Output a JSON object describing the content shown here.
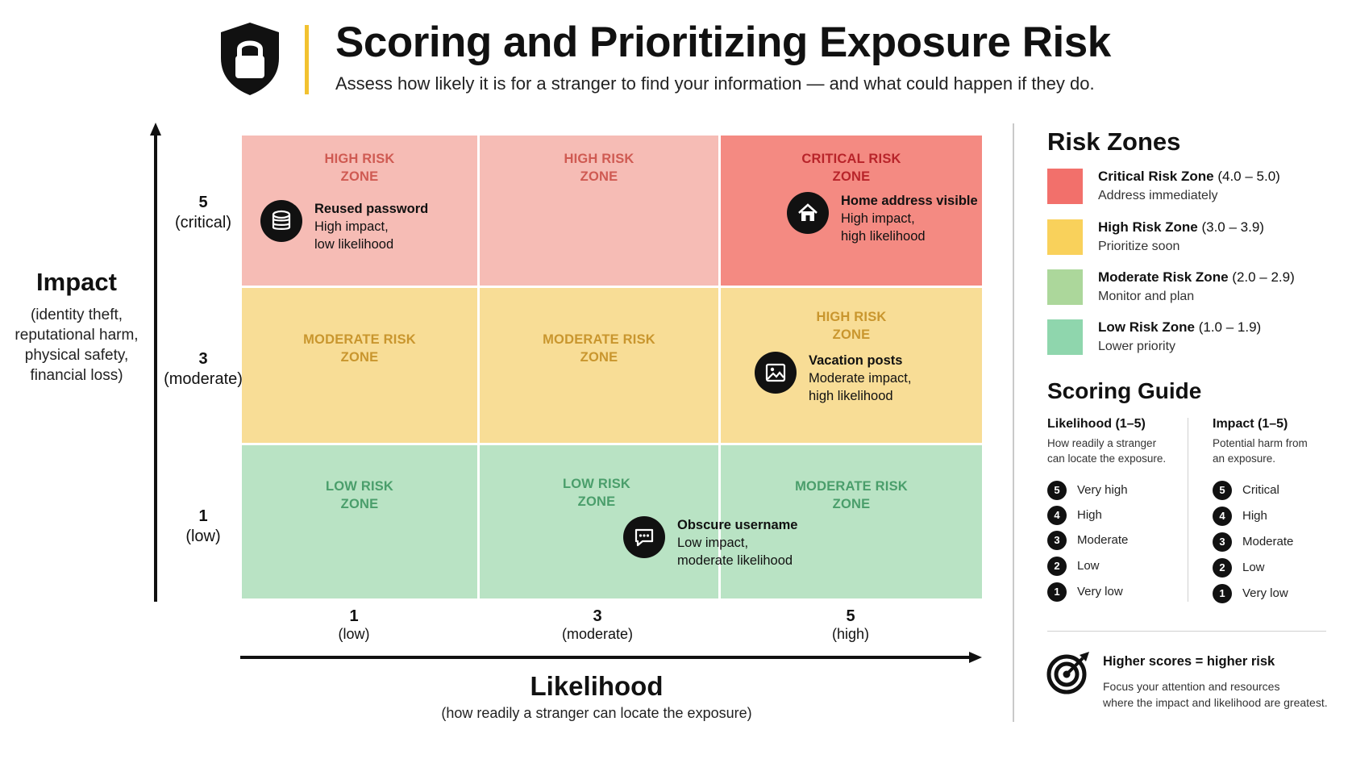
{
  "header": {
    "title": "Scoring and Prioritizing Exposure Risk",
    "subtitle": "Assess how likely it is for a stranger to find your information — and what could happen if they do.",
    "icon": "shield-lock-icon",
    "accent_color": "#f2c230"
  },
  "axes": {
    "y": {
      "title": "Impact",
      "subtitle": "(identity theft, reputational harm, physical safety, financial loss)",
      "ticks": [
        {
          "value": "5",
          "label": "(critical)"
        },
        {
          "value": "3",
          "label": "(moderate)"
        },
        {
          "value": "1",
          "label": "(low)"
        }
      ]
    },
    "x": {
      "title": "Likelihood",
      "subtitle": "(how readily a stranger can locate the exposure)",
      "ticks": [
        {
          "value": "1",
          "label": "(low)"
        },
        {
          "value": "3",
          "label": "(moderate)"
        },
        {
          "value": "5",
          "label": "(high)"
        }
      ]
    }
  },
  "grid": {
    "rows": [
      [
        {
          "zone": "high",
          "label_line1": "HIGH RISK",
          "label_line2": "ZONE"
        },
        {
          "zone": "high",
          "label_line1": "HIGH RISK",
          "label_line2": "ZONE"
        },
        {
          "zone": "critical",
          "label_line1": "CRITICAL RISK",
          "label_line2": "ZONE"
        }
      ],
      [
        {
          "zone": "moderate",
          "label_line1": "MODERATE RISK",
          "label_line2": "ZONE"
        },
        {
          "zone": "moderate",
          "label_line1": "MODERATE RISK",
          "label_line2": "ZONE"
        },
        {
          "zone": "high",
          "label_line1": "HIGH RISK",
          "label_line2": "ZONE"
        }
      ],
      [
        {
          "zone": "low",
          "label_line1": "LOW RISK",
          "label_line2": "ZONE"
        },
        {
          "zone": "low",
          "label_line1": "LOW RISK",
          "label_line2": "ZONE"
        },
        {
          "zone": "moderate",
          "label_line1": "MODERATE RISK",
          "label_line2": "ZONE"
        }
      ]
    ],
    "zone_colors": {
      "critical": "#f48a82",
      "high": "#f6bcb5",
      "moderate": "#f8dd96",
      "low": "#b9e3c4"
    }
  },
  "exposures": [
    {
      "icon": "database-icon",
      "name": "Reused password",
      "line1": "High impact,",
      "line2": "low likelihood"
    },
    {
      "icon": "home-icon",
      "name": "Home address visible",
      "line1": "High impact,",
      "line2": "high likelihood"
    },
    {
      "icon": "image-icon",
      "name": "Vacation posts",
      "line1": "Moderate impact,",
      "line2": "high likelihood"
    },
    {
      "icon": "chat-bubble-icon",
      "name": "Obscure username",
      "line1": "Low impact,",
      "line2": "moderate likelihood"
    }
  ],
  "risk_zones": {
    "title": "Risk Zones",
    "items": [
      {
        "name": "Critical Risk Zone",
        "range": "(4.0 – 5.0)",
        "action": "Address immediately",
        "color": "#f2706b"
      },
      {
        "name": "High Risk Zone",
        "range": "(3.0 – 3.9)",
        "action": "Prioritize soon",
        "color": "#f9d15b"
      },
      {
        "name": "Moderate Risk Zone",
        "range": "(2.0 – 2.9)",
        "action": "Monitor and plan",
        "color": "#acd79b"
      },
      {
        "name": "Low Risk Zone",
        "range": "(1.0 – 1.9)",
        "action": "Lower priority",
        "color": "#8fd6ad"
      }
    ]
  },
  "scoring_guide": {
    "title": "Scoring Guide",
    "likelihood": {
      "heading": "Likelihood (1–5)",
      "desc_line1": "How readily a stranger",
      "desc_line2": "can locate the exposure.",
      "levels": [
        {
          "n": "5",
          "label": "Very high"
        },
        {
          "n": "4",
          "label": "High"
        },
        {
          "n": "3",
          "label": "Moderate"
        },
        {
          "n": "2",
          "label": "Low"
        },
        {
          "n": "1",
          "label": "Very low"
        }
      ]
    },
    "impact": {
      "heading": "Impact (1–5)",
      "desc_line1": "Potential harm from",
      "desc_line2": "an exposure.",
      "levels": [
        {
          "n": "5",
          "label": "Critical"
        },
        {
          "n": "4",
          "label": "High"
        },
        {
          "n": "3",
          "label": "Moderate"
        },
        {
          "n": "2",
          "label": "Low"
        },
        {
          "n": "1",
          "label": "Very low"
        }
      ]
    }
  },
  "callout": {
    "icon": "target-icon",
    "title": "Higher scores = higher risk",
    "line1": "Focus your attention and resources",
    "line2": "where the impact and likelihood are greatest."
  }
}
